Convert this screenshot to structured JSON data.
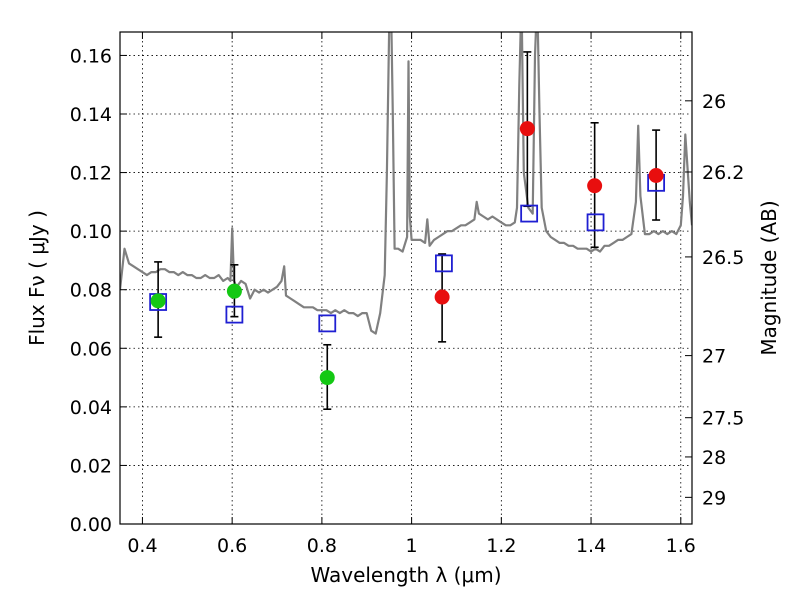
{
  "chart_data": {
    "type": "scatter",
    "xlabel": "Wavelength  λ (μm)",
    "ylabel": "Flux  Fν  ( μJy )",
    "y2label": "Magnitude (AB)",
    "xlim": [
      0.35,
      1.625
    ],
    "ylim": [
      0.0,
      0.168
    ],
    "grid": true,
    "x_ticks": [
      0.4,
      0.6,
      0.8,
      1.0,
      1.2,
      1.4,
      1.6
    ],
    "x_tick_labels": [
      "0.4",
      "0.6",
      "0.8",
      "1",
      "1.2",
      "1.4",
      "1.6"
    ],
    "y_ticks": [
      0.0,
      0.02,
      0.04,
      0.06,
      0.08,
      0.1,
      0.12,
      0.14,
      0.16
    ],
    "y_tick_labels": [
      "0.00",
      "0.02",
      "0.04",
      "0.06",
      "0.08",
      "0.10",
      "0.12",
      "0.14",
      "0.16"
    ],
    "y2_ticks": [
      {
        "label": "26",
        "flux": 0.1445
      },
      {
        "label": "26.2",
        "flux": 0.1202
      },
      {
        "label": "26.5",
        "flux": 0.0912
      },
      {
        "label": "27",
        "flux": 0.0575
      },
      {
        "label": "27.5",
        "flux": 0.0363
      },
      {
        "label": "28",
        "flux": 0.0229
      },
      {
        "label": "29",
        "flux": 0.0091
      }
    ],
    "series": [
      {
        "role": "spectrum",
        "color": "#808080",
        "x": [
          0.35,
          0.36,
          0.37,
          0.38,
          0.39,
          0.4,
          0.41,
          0.42,
          0.43,
          0.44,
          0.45,
          0.46,
          0.47,
          0.48,
          0.49,
          0.5,
          0.51,
          0.52,
          0.53,
          0.54,
          0.55,
          0.56,
          0.57,
          0.58,
          0.59,
          0.596,
          0.6,
          0.604,
          0.61,
          0.62,
          0.63,
          0.64,
          0.65,
          0.66,
          0.67,
          0.68,
          0.69,
          0.7,
          0.71,
          0.716,
          0.72,
          0.73,
          0.74,
          0.75,
          0.76,
          0.77,
          0.78,
          0.79,
          0.8,
          0.81,
          0.82,
          0.83,
          0.84,
          0.85,
          0.86,
          0.87,
          0.88,
          0.89,
          0.9,
          0.91,
          0.92,
          0.93,
          0.94,
          0.945,
          0.95,
          0.952,
          0.955,
          0.958,
          0.962,
          0.97,
          0.98,
          0.99,
          0.993,
          0.996,
          1.0,
          1.02,
          1.03,
          1.035,
          1.04,
          1.05,
          1.06,
          1.07,
          1.08,
          1.09,
          1.1,
          1.11,
          1.12,
          1.13,
          1.14,
          1.145,
          1.15,
          1.16,
          1.17,
          1.18,
          1.19,
          1.2,
          1.21,
          1.22,
          1.23,
          1.235,
          1.24,
          1.245,
          1.25,
          1.26,
          1.27,
          1.275,
          1.28,
          1.285,
          1.29,
          1.3,
          1.31,
          1.32,
          1.33,
          1.34,
          1.35,
          1.36,
          1.37,
          1.38,
          1.39,
          1.4,
          1.41,
          1.42,
          1.43,
          1.44,
          1.45,
          1.46,
          1.47,
          1.48,
          1.49,
          1.5,
          1.505,
          1.51,
          1.52,
          1.53,
          1.54,
          1.55,
          1.56,
          1.57,
          1.58,
          1.59,
          1.6,
          1.605,
          1.61,
          1.62,
          1.625
        ],
        "y": [
          0.08,
          0.094,
          0.089,
          0.088,
          0.087,
          0.086,
          0.085,
          0.086,
          0.086,
          0.087,
          0.087,
          0.086,
          0.086,
          0.085,
          0.086,
          0.085,
          0.085,
          0.084,
          0.084,
          0.085,
          0.084,
          0.084,
          0.085,
          0.083,
          0.084,
          0.083,
          0.101,
          0.083,
          0.081,
          0.083,
          0.082,
          0.077,
          0.08,
          0.079,
          0.08,
          0.079,
          0.08,
          0.081,
          0.083,
          0.088,
          0.078,
          0.077,
          0.076,
          0.075,
          0.074,
          0.074,
          0.074,
          0.073,
          0.073,
          0.073,
          0.072,
          0.073,
          0.072,
          0.073,
          0.072,
          0.072,
          0.071,
          0.072,
          0.072,
          0.066,
          0.065,
          0.072,
          0.085,
          0.12,
          0.17,
          0.18,
          0.17,
          0.14,
          0.094,
          0.094,
          0.093,
          0.098,
          0.158,
          0.105,
          0.097,
          0.097,
          0.096,
          0.104,
          0.095,
          0.097,
          0.098,
          0.099,
          0.1,
          0.1,
          0.101,
          0.102,
          0.102,
          0.103,
          0.104,
          0.11,
          0.106,
          0.105,
          0.104,
          0.105,
          0.104,
          0.103,
          0.102,
          0.102,
          0.103,
          0.108,
          0.15,
          0.18,
          0.12,
          0.108,
          0.106,
          0.16,
          0.18,
          0.14,
          0.108,
          0.1,
          0.098,
          0.097,
          0.096,
          0.096,
          0.095,
          0.095,
          0.094,
          0.094,
          0.094,
          0.093,
          0.094,
          0.093,
          0.095,
          0.095,
          0.096,
          0.097,
          0.097,
          0.098,
          0.099,
          0.11,
          0.136,
          0.112,
          0.099,
          0.099,
          0.1,
          0.099,
          0.1,
          0.099,
          0.1,
          0.099,
          0.102,
          0.112,
          0.133,
          0.11,
          0.102
        ]
      },
      {
        "role": "model-squares",
        "color": "#1f1fd2",
        "x": [
          0.435,
          0.605,
          0.812,
          1.072,
          1.262,
          1.41,
          1.545
        ],
        "y": [
          0.0758,
          0.0715,
          0.0685,
          0.089,
          0.106,
          0.103,
          0.1165
        ]
      },
      {
        "role": "green-points",
        "color": "#14c814",
        "x": [
          0.435,
          0.605,
          0.812
        ],
        "y": [
          0.0762,
          0.0795,
          0.05
        ],
        "yerr_low": [
          0.0638,
          0.0708,
          0.0392
        ],
        "yerr_high": [
          0.0895,
          0.0885,
          0.0612
        ]
      },
      {
        "role": "red-points",
        "color": "#e80e0e",
        "x": [
          1.068,
          1.258,
          1.408,
          1.545
        ],
        "y": [
          0.0775,
          0.135,
          0.1155,
          0.119
        ],
        "yerr_low": [
          0.0622,
          0.1085,
          0.0945,
          0.1038
        ],
        "yerr_high": [
          0.0922,
          0.1612,
          0.137,
          0.1345
        ]
      }
    ]
  }
}
